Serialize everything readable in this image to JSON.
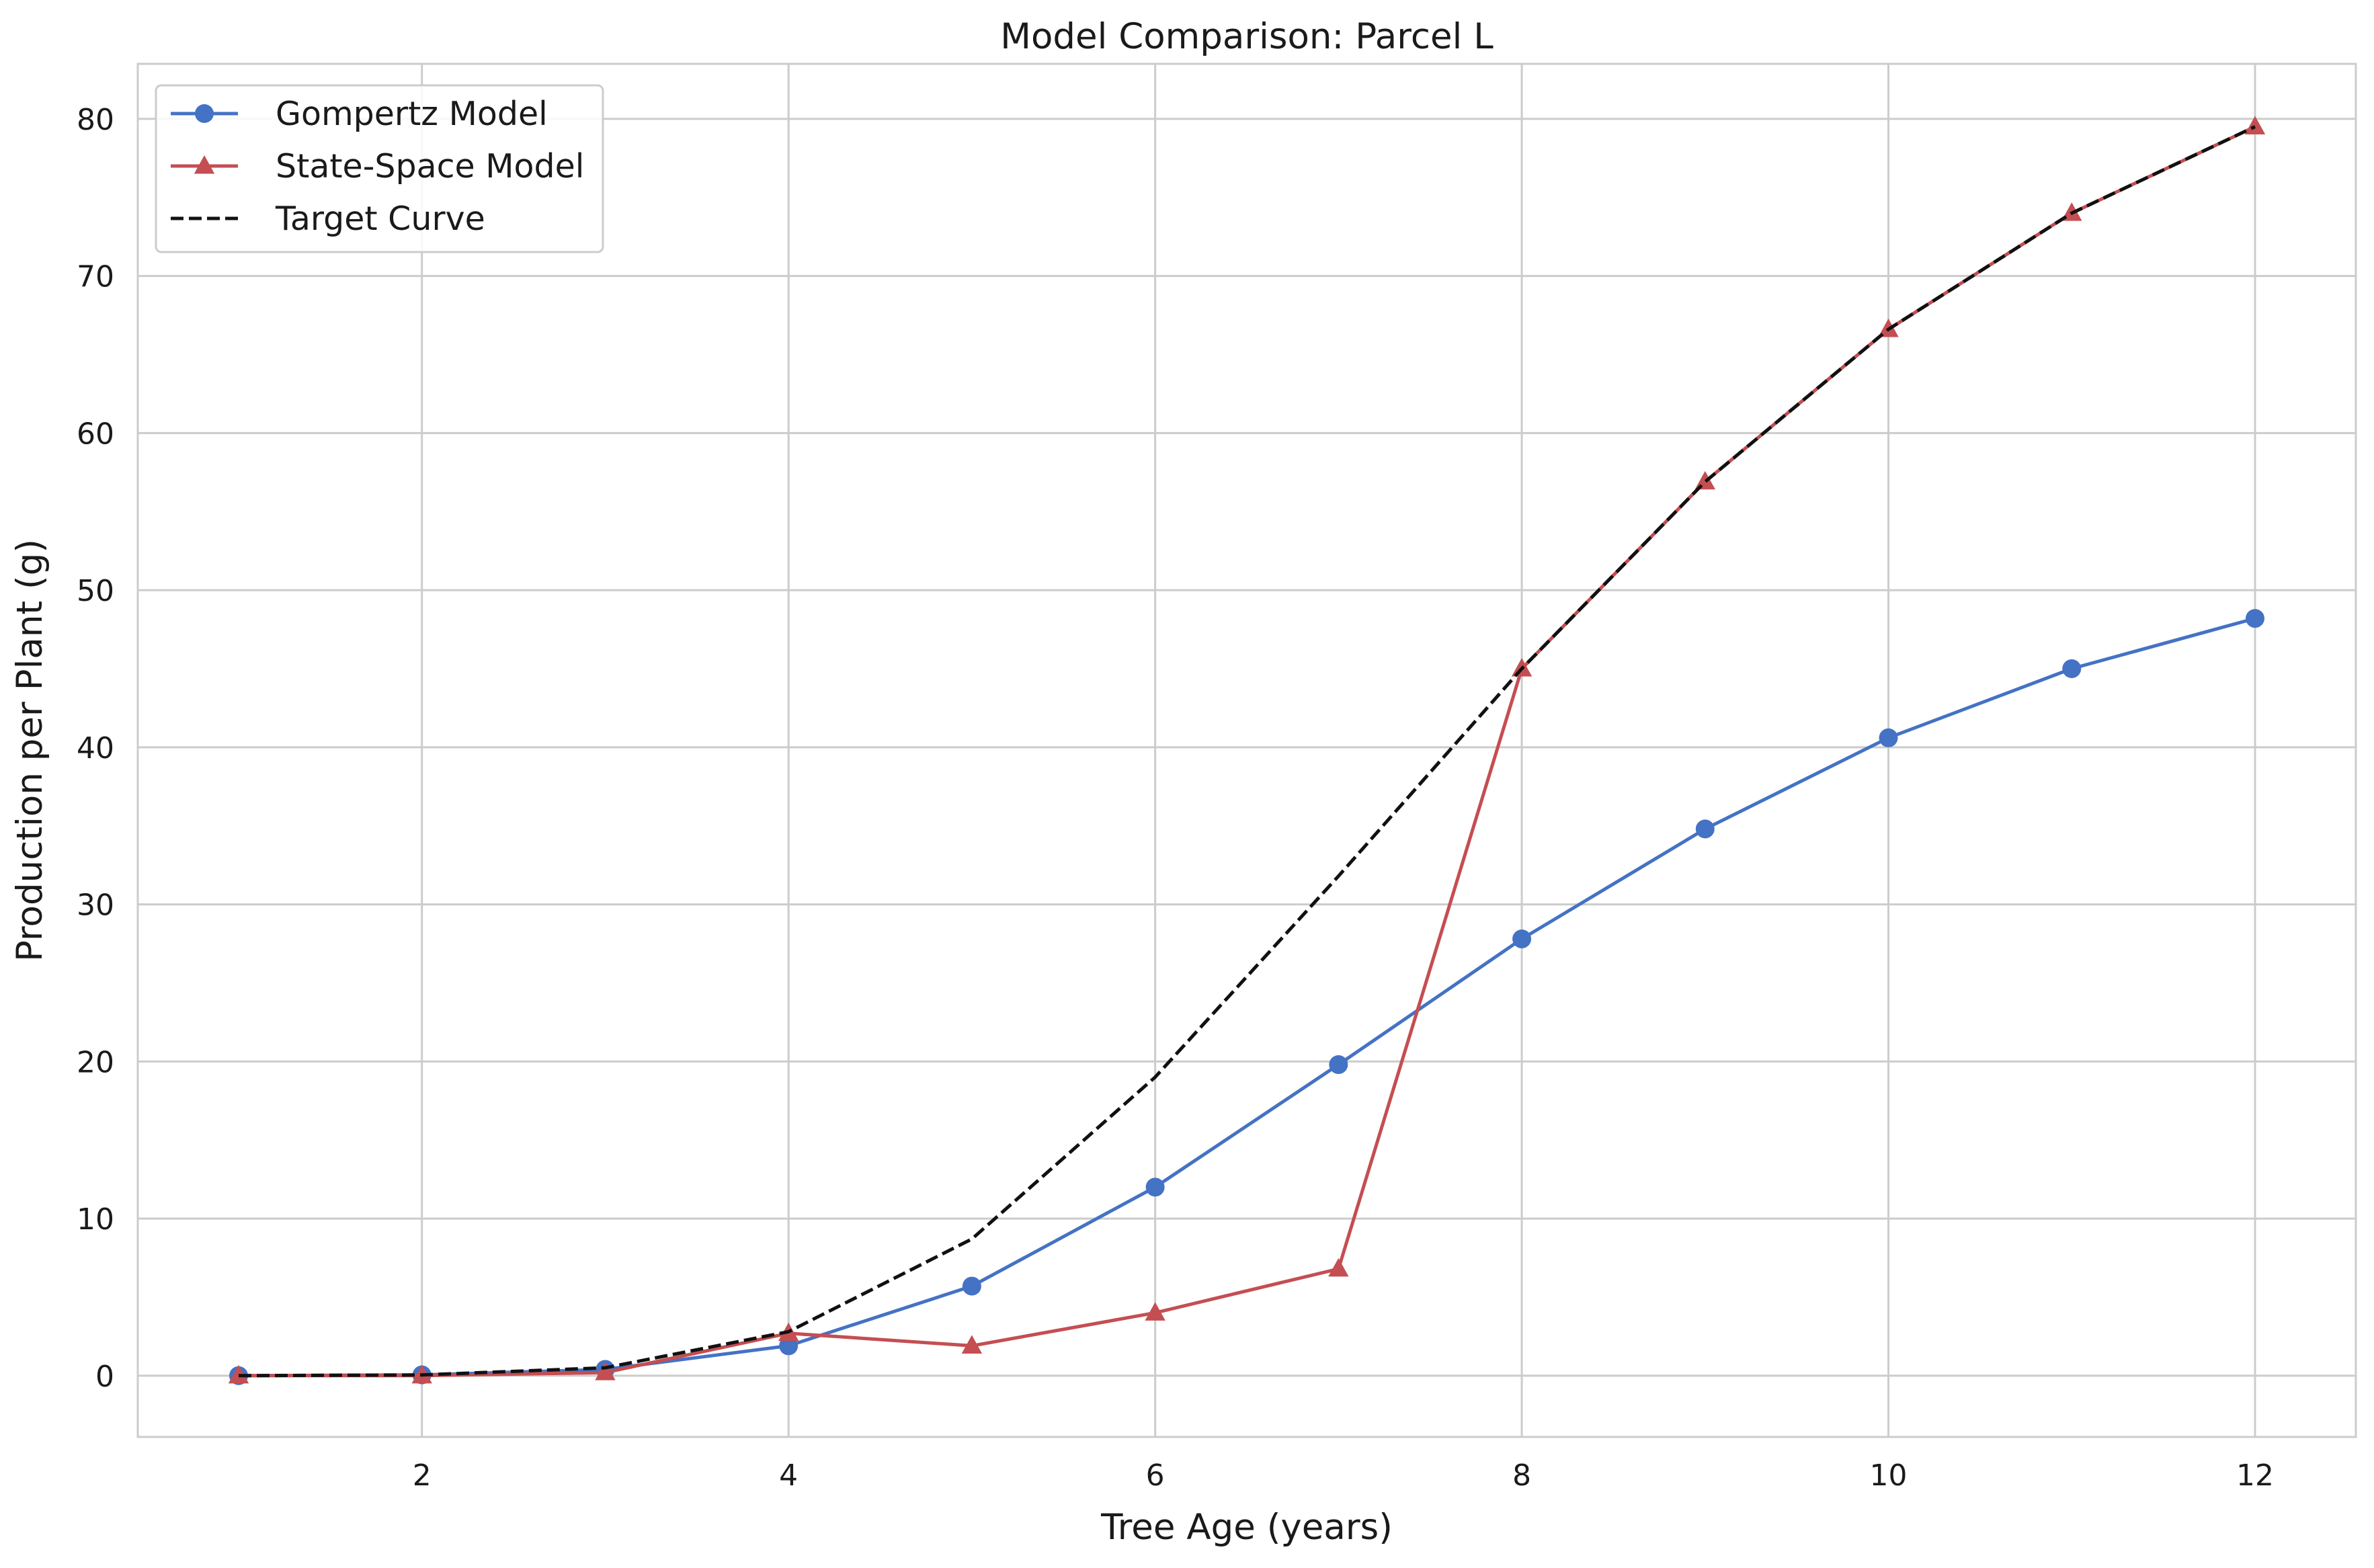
{
  "chart_data": {
    "type": "line",
    "title": "Model Comparison: Parcel L",
    "xlabel": "Tree Age (years)",
    "ylabel": "Production per Plant (g)",
    "xlim": [
      0.45,
      12.55
    ],
    "ylim": [
      -3.9,
      83.5
    ],
    "xticks": [
      2,
      4,
      6,
      8,
      10,
      12
    ],
    "yticks": [
      0,
      10,
      20,
      30,
      40,
      50,
      60,
      70,
      80
    ],
    "grid": true,
    "legend_position": "top-left",
    "x": [
      1,
      2,
      3,
      4,
      5,
      6,
      7,
      8,
      9,
      10,
      11,
      12
    ],
    "series": [
      {
        "name": "Gompertz Model",
        "color": "#4472c4",
        "marker": "circle",
        "linestyle": "solid",
        "values": [
          0.0,
          0.05,
          0.4,
          1.9,
          5.7,
          12.0,
          19.8,
          27.8,
          34.8,
          40.6,
          45.0,
          48.2
        ]
      },
      {
        "name": "State-Space Model",
        "color": "#c44e52",
        "marker": "triangle",
        "linestyle": "solid",
        "values": [
          0.0,
          0.0,
          0.2,
          2.7,
          1.9,
          4.0,
          6.8,
          45.0,
          56.9,
          66.6,
          74.0,
          79.5
        ]
      },
      {
        "name": "Target Curve",
        "color": "#111111",
        "marker": "none",
        "linestyle": "dashed",
        "values": [
          0.0,
          0.05,
          0.5,
          2.8,
          8.7,
          19.0,
          31.8,
          45.0,
          56.9,
          66.6,
          74.0,
          79.5
        ]
      }
    ]
  }
}
